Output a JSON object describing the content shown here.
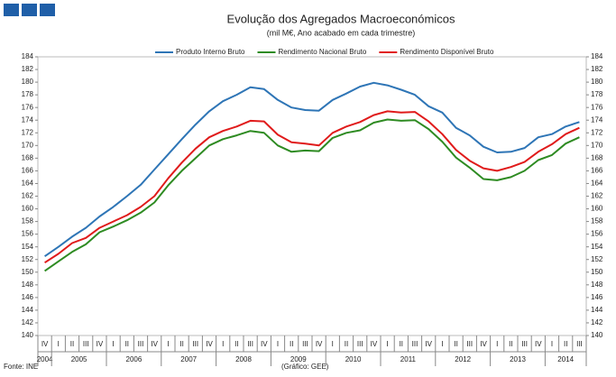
{
  "chart_data": {
    "type": "line",
    "title": "Evolução dos Agregados Macroeconómicos",
    "subtitle": "(mil M€, Ano acabado em cada trimestre)",
    "source": "Fonte: INE",
    "credit": "(Gráfico: GEE)",
    "categories": [
      "IV",
      "I",
      "II",
      "III",
      "IV",
      "I",
      "II",
      "III",
      "IV",
      "I",
      "II",
      "III",
      "IV",
      "I",
      "II",
      "III",
      "IV",
      "I",
      "II",
      "III",
      "IV",
      "I",
      "II",
      "III",
      "IV",
      "I",
      "II",
      "III",
      "IV",
      "I",
      "II",
      "III",
      "IV",
      "I",
      "II",
      "III",
      "IV",
      "I",
      "II",
      "III"
    ],
    "years": [
      "2004",
      "2005",
      "2006",
      "2007",
      "2008",
      "2009",
      "2010",
      "2011",
      "2012",
      "2013",
      "2014"
    ],
    "ylim": [
      140,
      184
    ],
    "yticks": [
      140,
      142,
      144,
      146,
      148,
      150,
      152,
      154,
      156,
      158,
      160,
      162,
      164,
      166,
      168,
      170,
      172,
      174,
      176,
      178,
      180,
      182,
      184
    ],
    "y2lim": [
      140,
      184
    ],
    "y2ticks": [
      140,
      142,
      144,
      146,
      148,
      150,
      152,
      154,
      156,
      158,
      160,
      162,
      164,
      166,
      168,
      170,
      172,
      174,
      176,
      178,
      180,
      182,
      184
    ],
    "grid": false,
    "legend": "top",
    "series": [
      {
        "name": "Produto Interno Bruto",
        "color": "#2e75b6",
        "values": [
          152.5,
          154,
          155.6,
          157,
          158.8,
          160.3,
          162,
          163.8,
          166.2,
          168.6,
          171,
          173.3,
          175.4,
          177,
          178,
          179.2,
          178.9,
          177.2,
          176,
          175.6,
          175.5,
          177.2,
          178.2,
          179.3,
          179.9,
          179.5,
          178.8,
          178,
          176.2,
          175.2,
          172.8,
          171.6,
          169.8,
          168.9,
          169,
          169.6,
          171.3,
          171.8,
          173,
          173.7
        ]
      },
      {
        "name": "Rendimento Nacional Bruto",
        "color": "#2e8b22",
        "values": [
          150.2,
          151.7,
          153.2,
          154.4,
          156.3,
          157.2,
          158.2,
          159.4,
          161,
          163.7,
          166,
          168,
          170,
          171,
          171.6,
          172.3,
          172,
          170,
          169,
          169.2,
          169.1,
          171.2,
          172,
          172.4,
          173.6,
          174.1,
          173.9,
          174,
          172.6,
          170.6,
          168.1,
          166.5,
          164.7,
          164.5,
          165,
          166,
          167.7,
          168.5,
          170.3,
          171.3
        ]
      },
      {
        "name": "Rendimento Disponível Bruto",
        "color": "#e01b1b",
        "values": [
          151.5,
          152.9,
          154.6,
          155.4,
          157,
          158,
          159,
          160.3,
          162,
          164.8,
          167.3,
          169.5,
          171.3,
          172.3,
          173,
          173.9,
          173.8,
          171.7,
          170.5,
          170.3,
          170,
          172,
          173,
          173.7,
          174.8,
          175.4,
          175.2,
          175.3,
          173.8,
          171.8,
          169.3,
          167.6,
          166.4,
          166,
          166.6,
          167.4,
          169,
          170.2,
          171.8,
          172.8
        ]
      }
    ]
  }
}
